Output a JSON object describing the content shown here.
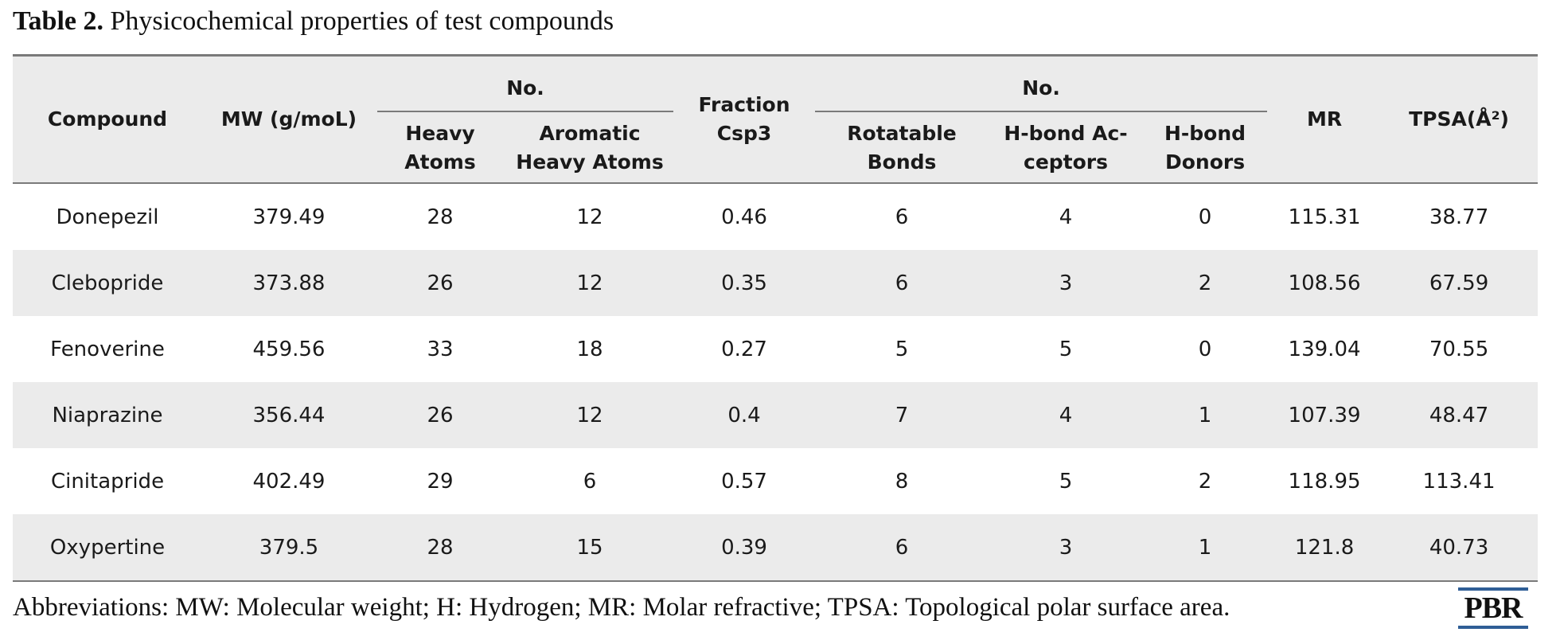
{
  "caption": {
    "label": "Table 2.",
    "text": " Physicochemical properties of test compounds"
  },
  "table": {
    "headers": {
      "compound": "Compound",
      "mw": "MW (g/moL)",
      "no_group_1": "No.",
      "heavy_atoms_line1": "Heavy",
      "heavy_atoms_line2": "Atoms",
      "aromatic_line1": "Aromatic",
      "aromatic_line2": "Heavy Atoms",
      "fraction_line1": "Fraction",
      "fraction_line2": "Csp3",
      "no_group_2": "No.",
      "rotatable_line1": "Rotatable",
      "rotatable_line2": "Bonds",
      "acceptors_line1": "H-bond Ac-",
      "acceptors_line2": "ceptors",
      "donors_line1": "H-bond",
      "donors_line2": "Donors",
      "mr": "MR",
      "tpsa": "TPSA(Å²)"
    },
    "rows": [
      [
        "Donepezil",
        "379.49",
        "28",
        "12",
        "0.46",
        "6",
        "4",
        "0",
        "115.31",
        "38.77"
      ],
      [
        "Clebopride",
        "373.88",
        "26",
        "12",
        "0.35",
        "6",
        "3",
        "2",
        "108.56",
        "67.59"
      ],
      [
        "Fenoverine",
        "459.56",
        "33",
        "18",
        "0.27",
        "5",
        "5",
        "0",
        "139.04",
        "70.55"
      ],
      [
        "Niaprazine",
        "356.44",
        "26",
        "12",
        "0.4",
        "7",
        "4",
        "1",
        "107.39",
        "48.47"
      ],
      [
        "Cinitapride",
        "402.49",
        "29",
        "6",
        "0.57",
        "8",
        "5",
        "2",
        "118.95",
        "113.41"
      ],
      [
        "Oxypertine",
        "379.5",
        "28",
        "15",
        "0.39",
        "6",
        "3",
        "1",
        "121.8",
        "40.73"
      ]
    ]
  },
  "footnote": "Abbreviations: MW: Molecular weight; H: Hydrogen; MR: Molar refractive; TPSA: Topological polar surface area.",
  "logo": {
    "text": "PBR",
    "accent_color": "#2f5e96"
  },
  "colors": {
    "header_bg": "#ebebeb",
    "stripe_bg": "#ebebeb",
    "rule": "#7a7a7a"
  }
}
